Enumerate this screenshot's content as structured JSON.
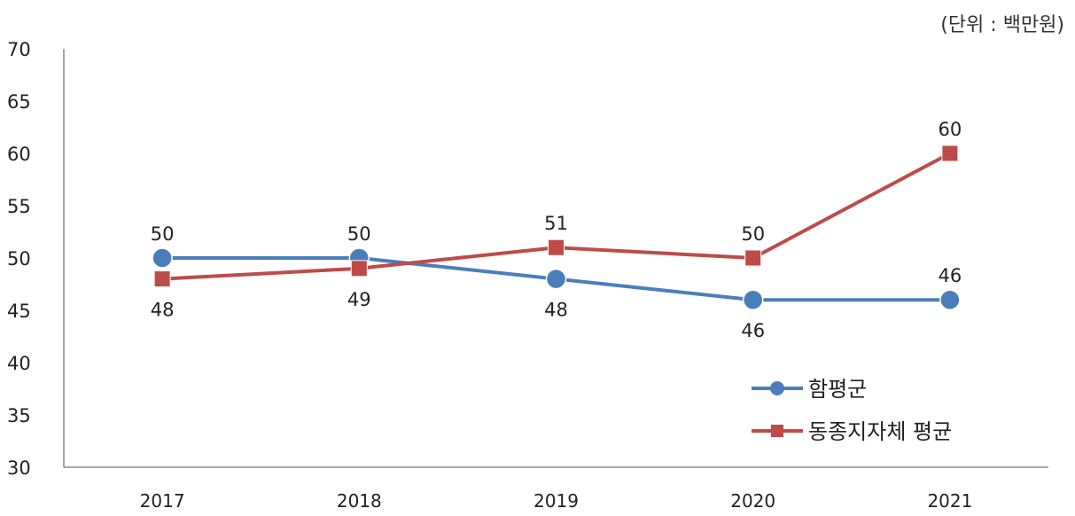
{
  "unit_label": "(단위 : 백만원)",
  "chart_data": {
    "type": "line",
    "categories": [
      "2017",
      "2018",
      "2019",
      "2020",
      "2021"
    ],
    "ylim": [
      30,
      70
    ],
    "yticks": [
      30,
      35,
      40,
      45,
      50,
      55,
      60,
      65,
      70
    ],
    "grid": false,
    "legend_position": "bottom-right",
    "series": [
      {
        "name": "함평군",
        "values": [
          50,
          50,
          48,
          46,
          46
        ],
        "color": "#4a7ebb",
        "marker": "circle",
        "label_pos": [
          "above",
          "above",
          "below",
          "below",
          "above"
        ]
      },
      {
        "name": "동종지자체 평균",
        "values": [
          48,
          49,
          51,
          50,
          60
        ],
        "color": "#be4b48",
        "marker": "square",
        "label_pos": [
          "below",
          "below",
          "above",
          "above",
          "above"
        ]
      }
    ],
    "value_labels": [
      [
        "50",
        "50",
        "48",
        "46",
        "46"
      ],
      [
        "48",
        "49",
        "51",
        "50",
        "60"
      ]
    ]
  }
}
